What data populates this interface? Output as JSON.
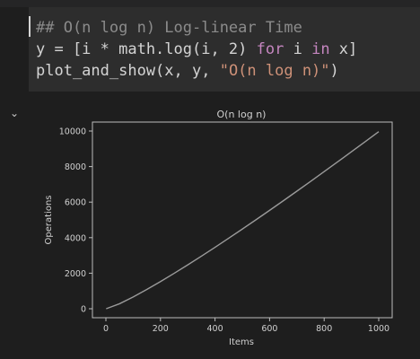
{
  "cell": {
    "comment": "## O(n log n) Log-linear Time",
    "line2": {
      "a": "y = [i * math.log(i, 2) ",
      "kw1": "for",
      "b": " i ",
      "kw2": "in",
      "c": " x]"
    },
    "line3": {
      "a": "plot_and_show(x, y, ",
      "s": "\"O(n log n)\"",
      "c": ")"
    }
  },
  "output": {
    "collapse_icon": "chevron-down-icon"
  },
  "colors": {
    "background": "#1e1e1e",
    "cell_background": "#2d2d2d",
    "comment": "#8b8b8b",
    "keyword": "#c586c0",
    "string": "#ce9178",
    "plot_line": "#9a9a9a"
  },
  "chart_data": {
    "type": "line",
    "title": "O(n log n)",
    "xlabel": "Items",
    "ylabel": "Operations",
    "xlim": [
      0,
      1000
    ],
    "ylim": [
      0,
      10000
    ],
    "xticks": [
      0,
      200,
      400,
      600,
      800,
      1000
    ],
    "yticks": [
      0,
      2000,
      4000,
      6000,
      8000,
      10000
    ],
    "grid": false,
    "series": [
      {
        "x": [
          1,
          50,
          100,
          150,
          200,
          250,
          300,
          350,
          400,
          450,
          500,
          550,
          600,
          650,
          700,
          750,
          800,
          850,
          900,
          950,
          1000
        ],
        "values": [
          0,
          282,
          664,
          1084,
          1529,
          1991,
          2469,
          2958,
          3458,
          3967,
          4483,
          5007,
          5537,
          6073,
          6616,
          7163,
          7715,
          8272,
          8834,
          9399,
          9966
        ]
      }
    ]
  }
}
